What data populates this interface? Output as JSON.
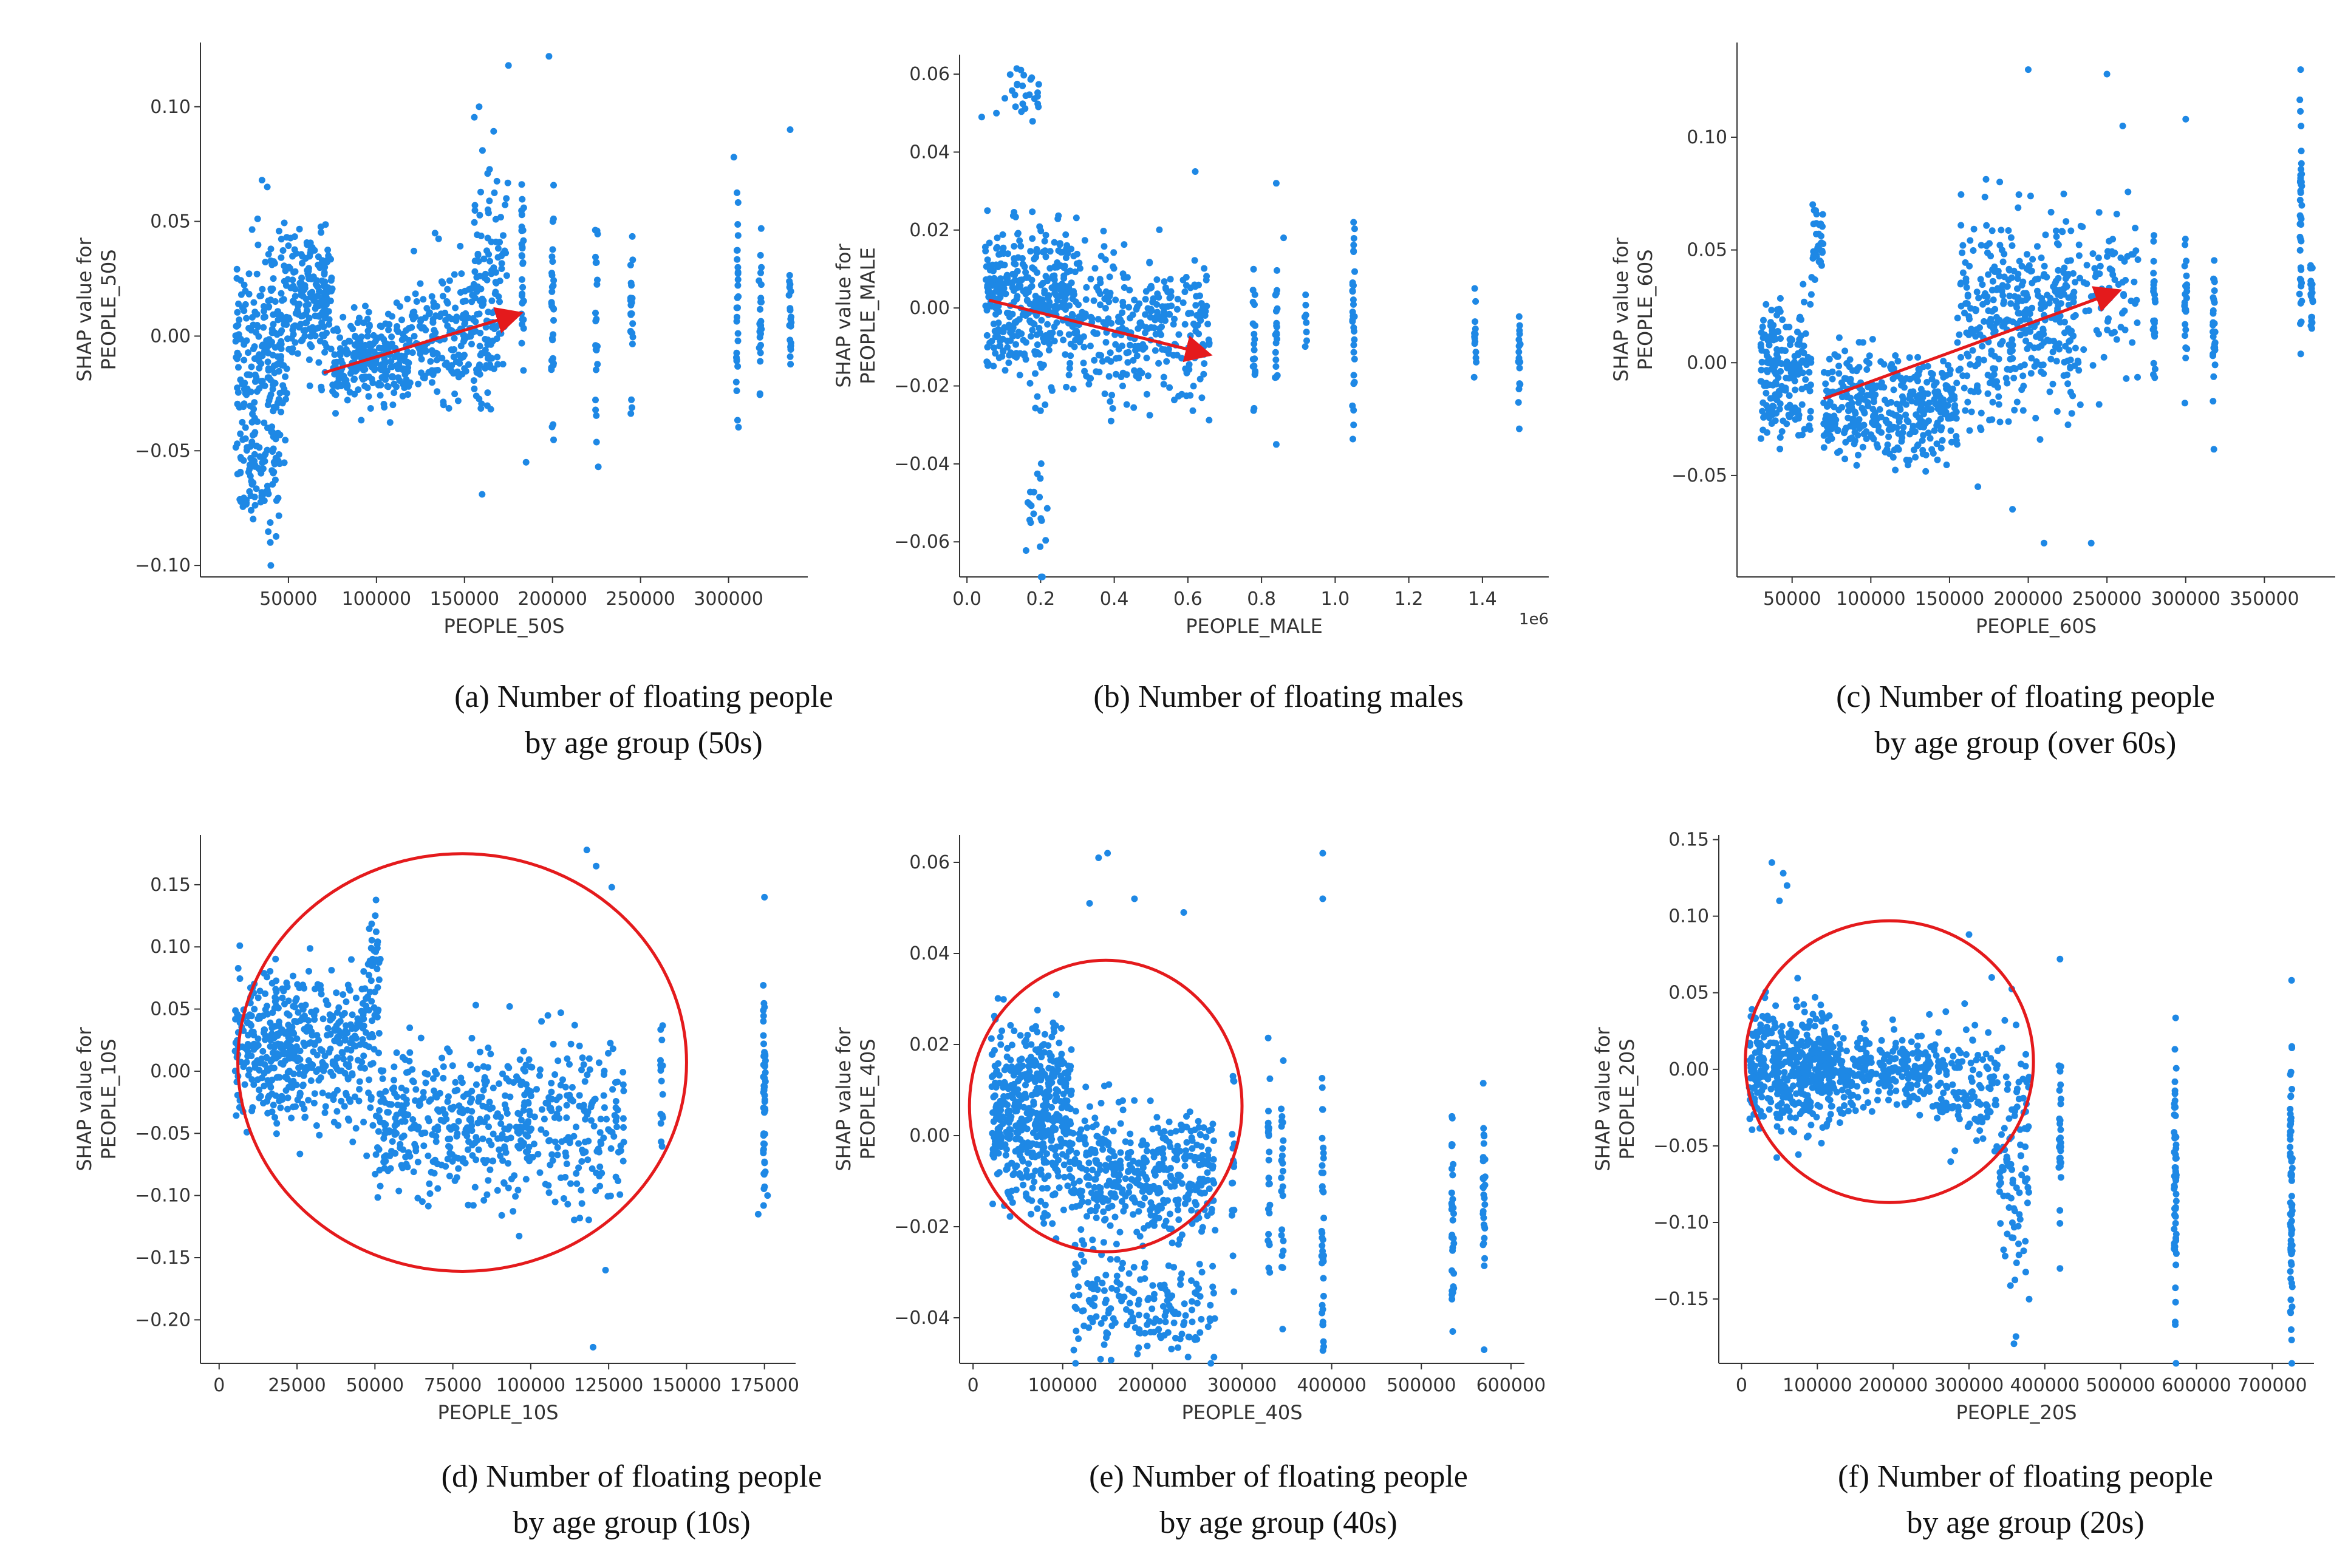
{
  "figure": {
    "panels": [
      {
        "id": "a",
        "caption": [
          "(a)  Number of floating people",
          "by age group (50s)"
        ]
      },
      {
        "id": "b",
        "caption": [
          "(b) Number of floating  males",
          ""
        ]
      },
      {
        "id": "c",
        "caption": [
          "(c) Number of floating people",
          "by age group (over 60s)"
        ]
      },
      {
        "id": "d",
        "caption": [
          "(d) Number of floating people",
          "by age group (10s)"
        ]
      },
      {
        "id": "e",
        "caption": [
          "(e) Number of floating  people",
          "by age group (40s)"
        ]
      },
      {
        "id": "f",
        "caption": [
          "(f) Number of floating people",
          "by age group (20s)"
        ]
      }
    ],
    "colors": {
      "points": "#1e88e5",
      "annotation": "#e41a1c",
      "axis": "#333333",
      "text": "#333333"
    }
  },
  "chart_data": [
    {
      "type": "scatter",
      "id": "a",
      "xlabel": "PEOPLE_50S",
      "ylabel": "SHAP value for\nPEOPLE_50S",
      "xlim": [
        0,
        345000
      ],
      "ylim": [
        -0.105,
        0.128
      ],
      "xticks": [
        50000,
        100000,
        150000,
        200000,
        250000,
        300000
      ],
      "xticklabels": [
        "50000",
        "100000",
        "150000",
        "200000",
        "250000",
        "300000"
      ],
      "yticks": [
        -0.1,
        -0.05,
        0,
        0.05,
        0.1
      ],
      "yticklabels": [
        "−0.10",
        "−0.05",
        "0.00",
        "0.05",
        "0.10"
      ],
      "offset": "",
      "clusters": [
        [
          20000,
          50000,
          -0.005,
          0.02,
          220
        ],
        [
          22000,
          45000,
          -0.06,
          0.012,
          90
        ],
        [
          50000,
          75000,
          0.015,
          0.015,
          180
        ],
        [
          75000,
          120000,
          -0.01,
          0.01,
          260
        ],
        [
          120000,
          170000,
          0.0,
          0.014,
          220
        ],
        [
          155000,
          175000,
          0.03,
          0.025,
          80
        ]
      ],
      "columns": [
        [
          183000,
          0.015,
          0.03,
          30
        ],
        [
          200000,
          0.015,
          0.03,
          30
        ],
        [
          225000,
          0.005,
          0.02,
          22
        ],
        [
          245000,
          0.005,
          0.018,
          22
        ],
        [
          305000,
          0.015,
          0.028,
          30
        ],
        [
          318000,
          0.01,
          0.02,
          26
        ],
        [
          335000,
          0.01,
          0.014,
          20
        ]
      ],
      "outliers": [
        [
          35000,
          0.068
        ],
        [
          38000,
          0.065
        ],
        [
          175000,
          0.118
        ],
        [
          198000,
          0.122
        ],
        [
          335000,
          0.09
        ],
        [
          303000,
          0.078
        ],
        [
          40000,
          -0.1
        ],
        [
          226000,
          -0.057
        ],
        [
          160000,
          -0.069
        ],
        [
          185000,
          -0.055
        ]
      ],
      "annotation": {
        "type": "arrow",
        "from": [
          70000,
          -0.016
        ],
        "to": [
          182000,
          0.01
        ]
      }
    },
    {
      "type": "scatter",
      "id": "b",
      "xlabel": "PEOPLE_MALE",
      "ylabel": "SHAP value for\nPEOPLE_MALE",
      "xlim": [
        -0.02,
        1.58
      ],
      "ylim": [
        -0.069,
        0.065
      ],
      "xticks": [
        0,
        0.2,
        0.4,
        0.6,
        0.8,
        1.0,
        1.2,
        1.4
      ],
      "xticklabels": [
        "0.0",
        "0.2",
        "0.4",
        "0.6",
        "0.8",
        "1.0",
        "1.2",
        "1.4"
      ],
      "yticks": [
        -0.06,
        -0.04,
        -0.02,
        0,
        0.02,
        0.04,
        0.06
      ],
      "yticklabels": [
        "−0.06",
        "−0.04",
        "−0.02",
        "0.00",
        "0.02",
        "0.04",
        "0.06"
      ],
      "offset": "1e6",
      "clusters": [
        [
          0.05,
          0.3,
          0.002,
          0.01,
          400
        ],
        [
          0.3,
          0.66,
          -0.005,
          0.009,
          300
        ],
        [
          0.1,
          0.2,
          0.055,
          0.004,
          25
        ],
        [
          0.16,
          0.22,
          -0.055,
          0.008,
          20
        ]
      ],
      "columns": [
        [
          0.78,
          -0.008,
          0.01,
          20
        ],
        [
          0.84,
          -0.005,
          0.01,
          20
        ],
        [
          0.92,
          -0.002,
          0.004,
          8
        ],
        [
          1.05,
          -0.005,
          0.014,
          30
        ],
        [
          1.38,
          -0.007,
          0.006,
          14
        ],
        [
          1.5,
          -0.01,
          0.008,
          18
        ]
      ],
      "outliers": [
        [
          0.04,
          0.049
        ],
        [
          0.08,
          0.05
        ],
        [
          0.84,
          0.032
        ],
        [
          0.86,
          0.018
        ],
        [
          1.05,
          0.022
        ],
        [
          1.05,
          -0.03
        ],
        [
          1.5,
          -0.031
        ],
        [
          0.84,
          -0.035
        ],
        [
          0.62,
          0.035
        ]
      ],
      "annotation": {
        "type": "arrow",
        "from": [
          0.06,
          0.002
        ],
        "to": [
          0.66,
          -0.012
        ]
      }
    },
    {
      "type": "scatter",
      "id": "c",
      "xlabel": "PEOPLE_60S",
      "ylabel": "SHAP value for\nPEOPLE_60S",
      "xlim": [
        15000,
        395000
      ],
      "ylim": [
        -0.095,
        0.142
      ],
      "xticks": [
        50000,
        100000,
        150000,
        200000,
        250000,
        300000,
        350000
      ],
      "xticklabels": [
        "50000",
        "100000",
        "150000",
        "200000",
        "250000",
        "300000",
        "350000"
      ],
      "yticks": [
        -0.05,
        0,
        0.05,
        0.1
      ],
      "yticklabels": [
        "−0.05",
        "0.00",
        "0.05",
        "0.10"
      ],
      "offset": "",
      "clusters": [
        [
          30000,
          62000,
          -0.002,
          0.015,
          200
        ],
        [
          62000,
          70000,
          0.05,
          0.008,
          40
        ],
        [
          70000,
          155000,
          -0.02,
          0.012,
          380
        ],
        [
          155000,
          230000,
          0.02,
          0.022,
          380
        ],
        [
          230000,
          270000,
          0.03,
          0.02,
          80
        ]
      ],
      "columns": [
        [
          280000,
          0.02,
          0.015,
          24
        ],
        [
          300000,
          0.025,
          0.015,
          24
        ],
        [
          318000,
          0.015,
          0.02,
          30
        ],
        [
          373000,
          0.06,
          0.03,
          40
        ],
        [
          380000,
          0.03,
          0.012,
          20
        ]
      ],
      "outliers": [
        [
          200000,
          0.13
        ],
        [
          250000,
          0.128
        ],
        [
          373000,
          0.13
        ],
        [
          300000,
          0.108
        ],
        [
          260000,
          0.105
        ],
        [
          168000,
          -0.055
        ],
        [
          190000,
          -0.065
        ],
        [
          210000,
          -0.08
        ],
        [
          240000,
          -0.08
        ]
      ],
      "annotation": {
        "type": "arrow",
        "from": [
          70000,
          -0.016
        ],
        "to": [
          258000,
          0.032
        ]
      }
    },
    {
      "type": "scatter",
      "id": "d",
      "xlabel": "PEOPLE_10S",
      "ylabel": "SHAP value for\nPEOPLE_10S",
      "xlim": [
        -6000,
        185000
      ],
      "ylim": [
        -0.235,
        0.19
      ],
      "xticks": [
        0,
        25000,
        50000,
        75000,
        100000,
        125000,
        150000,
        175000
      ],
      "xticklabels": [
        "0",
        "25000",
        "50000",
        "75000",
        "100000",
        "125000",
        "150000",
        "175000"
      ],
      "yticks": [
        -0.2,
        -0.15,
        -0.1,
        -0.05,
        0,
        0.05,
        0.1,
        0.15
      ],
      "yticklabels": [
        "−0.20",
        "−0.15",
        "−0.10",
        "−0.05",
        "0.00",
        "0.05",
        "0.10",
        "0.15"
      ],
      "offset": "",
      "clusters": [
        [
          5000,
          50000,
          0.02,
          0.03,
          500
        ],
        [
          50000,
          100000,
          -0.04,
          0.03,
          360
        ],
        [
          95000,
          130000,
          -0.04,
          0.035,
          200
        ],
        [
          48000,
          52000,
          0.09,
          0.03,
          30
        ]
      ],
      "columns": [
        [
          142000,
          -0.01,
          0.025,
          16
        ],
        [
          175000,
          -0.03,
          0.05,
          50
        ]
      ],
      "outliers": [
        [
          118000,
          0.178
        ],
        [
          121000,
          0.165
        ],
        [
          120000,
          -0.222
        ],
        [
          124000,
          -0.16
        ],
        [
          175000,
          0.14
        ],
        [
          176000,
          -0.1
        ],
        [
          173000,
          -0.115
        ],
        [
          126000,
          0.148
        ]
      ],
      "annotation": {
        "type": "circle",
        "cx": 78000,
        "cy": 0.007,
        "rx": 72000,
        "ry": 0.168
      }
    },
    {
      "type": "scatter",
      "id": "e",
      "xlabel": "PEOPLE_40S",
      "ylabel": "SHAP value for\nPEOPLE_40S",
      "xlim": [
        -15000,
        615000
      ],
      "ylim": [
        -0.05,
        0.066
      ],
      "xticks": [
        0,
        100000,
        200000,
        300000,
        400000,
        500000,
        600000
      ],
      "xticklabels": [
        "0",
        "100000",
        "200000",
        "300000",
        "400000",
        "500000",
        "600000"
      ],
      "yticks": [
        -0.04,
        -0.02,
        0,
        0.02,
        0.04,
        0.06
      ],
      "yticklabels": [
        "−0.04",
        "−0.02",
        "0.00",
        "0.02",
        "0.04",
        "0.06"
      ],
      "offset": "",
      "clusters": [
        [
          20000,
          110000,
          0.005,
          0.01,
          500
        ],
        [
          110000,
          270000,
          -0.008,
          0.007,
          400
        ],
        [
          110000,
          270000,
          -0.038,
          0.006,
          180
        ]
      ],
      "columns": [
        [
          290000,
          -0.01,
          0.012,
          16
        ],
        [
          330000,
          -0.01,
          0.012,
          24
        ],
        [
          345000,
          -0.01,
          0.012,
          24
        ],
        [
          390000,
          -0.02,
          0.014,
          40
        ],
        [
          535000,
          -0.015,
          0.012,
          30
        ],
        [
          570000,
          -0.015,
          0.01,
          30
        ]
      ],
      "outliers": [
        [
          140000,
          0.061
        ],
        [
          150000,
          0.062
        ],
        [
          130000,
          0.051
        ],
        [
          180000,
          0.052
        ],
        [
          235000,
          0.049
        ],
        [
          390000,
          0.062
        ],
        [
          390000,
          0.052
        ],
        [
          535000,
          -0.043
        ],
        [
          570000,
          -0.047
        ]
      ],
      "annotation": {
        "type": "circle",
        "cx": 148000,
        "cy": 0.0065,
        "rx": 152000,
        "ry": 0.032
      }
    },
    {
      "type": "scatter",
      "id": "f",
      "xlabel": "PEOPLE_20S",
      "ylabel": "SHAP value for\nPEOPLE_20S",
      "xlim": [
        -30000,
        755000
      ],
      "ylim": [
        -0.192,
        0.153
      ],
      "xticks": [
        0,
        100000,
        200000,
        300000,
        400000,
        500000,
        600000,
        700000
      ],
      "xticklabels": [
        "0",
        "100000",
        "200000",
        "300000",
        "400000",
        "500000",
        "600000",
        "700000"
      ],
      "yticks": [
        -0.15,
        -0.1,
        -0.05,
        0,
        0.05,
        0.1,
        0.15
      ],
      "yticklabels": [
        "−0.15",
        "−0.10",
        "−0.05",
        "0.00",
        "0.05",
        "0.10",
        "0.15"
      ],
      "offset": "",
      "clusters": [
        [
          10000,
          120000,
          0.0,
          0.02,
          420
        ],
        [
          120000,
          260000,
          0.0,
          0.012,
          250
        ],
        [
          260000,
          340000,
          -0.01,
          0.02,
          120
        ],
        [
          340000,
          380000,
          -0.06,
          0.04,
          100
        ]
      ],
      "columns": [
        [
          420000,
          -0.04,
          0.03,
          30
        ],
        [
          572000,
          -0.07,
          0.045,
          60
        ],
        [
          725000,
          -0.08,
          0.05,
          70
        ]
      ],
      "outliers": [
        [
          40000,
          0.135
        ],
        [
          55000,
          0.128
        ],
        [
          50000,
          0.11
        ],
        [
          60000,
          0.12
        ],
        [
          420000,
          0.072
        ],
        [
          420000,
          -0.13
        ],
        [
          300000,
          0.088
        ],
        [
          330000,
          0.06
        ],
        [
          725000,
          -0.17
        ],
        [
          572000,
          -0.165
        ]
      ],
      "annotation": {
        "type": "circle",
        "cx": 195000,
        "cy": 0.005,
        "rx": 190000,
        "ry": 0.092
      }
    }
  ]
}
